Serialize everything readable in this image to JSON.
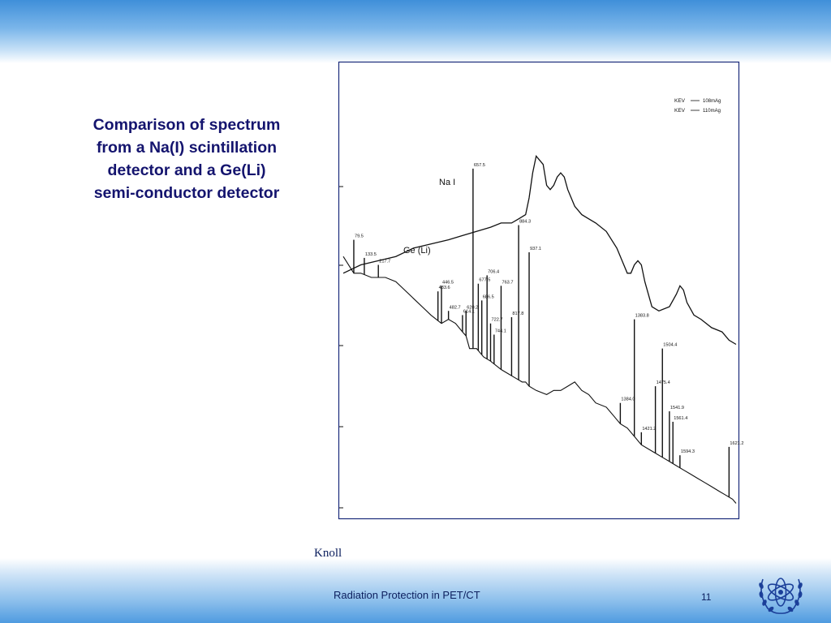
{
  "slide": {
    "title_lines": [
      "Comparison of spectrum",
      "from a Na(I) scintillation",
      "detector and a Ge(Li)",
      "semi-conductor detector"
    ],
    "credit": "Knoll",
    "footer": "Radiation Protection in PET/CT",
    "page_number": "11",
    "colors": {
      "title": "#14146e",
      "band_top": "#3f8fd9",
      "band_bottom": "#4f9be0",
      "frame": "#1a2a7a"
    },
    "logo_icon": "iaea-atom-laurel-icon"
  },
  "chart_data": {
    "type": "line",
    "x_label": "",
    "y_label": "",
    "legend_lines": [
      {
        "label": "KEV",
        "target": "108mAg"
      },
      {
        "label": "KEV",
        "target": "110mAg"
      }
    ],
    "series": [
      {
        "name": "Na I",
        "points": [
          [
            0,
            58
          ],
          [
            5,
            60
          ],
          [
            10,
            61
          ],
          [
            15,
            62
          ],
          [
            20,
            64
          ],
          [
            25,
            65
          ],
          [
            30,
            66
          ],
          [
            34,
            67
          ],
          [
            38,
            68
          ],
          [
            42,
            69
          ],
          [
            45,
            70
          ],
          [
            48,
            70
          ],
          [
            50,
            71
          ],
          [
            52,
            72
          ],
          [
            53,
            76
          ],
          [
            54,
            82
          ],
          [
            55,
            86
          ],
          [
            56,
            85
          ],
          [
            57,
            84
          ],
          [
            58,
            79
          ],
          [
            59,
            78
          ],
          [
            60,
            79
          ],
          [
            61,
            81
          ],
          [
            62,
            82
          ],
          [
            63,
            81
          ],
          [
            64,
            78
          ],
          [
            66,
            74
          ],
          [
            68,
            72
          ],
          [
            70,
            71
          ],
          [
            72,
            70
          ],
          [
            75,
            68
          ],
          [
            78,
            64
          ],
          [
            80,
            60
          ],
          [
            81,
            58
          ],
          [
            82,
            58
          ],
          [
            83,
            60
          ],
          [
            84,
            61
          ],
          [
            85,
            60
          ],
          [
            86,
            56
          ],
          [
            88,
            50
          ],
          [
            90,
            49
          ],
          [
            93,
            50
          ],
          [
            95,
            53
          ],
          [
            96,
            55
          ],
          [
            97,
            54
          ],
          [
            98,
            51
          ],
          [
            100,
            48
          ],
          [
            102,
            47
          ],
          [
            105,
            45
          ],
          [
            108,
            44
          ],
          [
            110,
            42
          ],
          [
            112,
            41
          ]
        ]
      },
      {
        "name": "Ge (Li)",
        "points": [
          [
            0,
            62
          ],
          [
            3,
            58
          ],
          [
            5,
            58
          ],
          [
            8,
            57
          ],
          [
            12,
            57
          ],
          [
            15,
            56
          ],
          [
            20,
            52
          ],
          [
            25,
            48
          ],
          [
            28,
            46
          ],
          [
            30,
            47
          ],
          [
            32,
            46
          ],
          [
            34,
            44
          ],
          [
            35,
            43
          ],
          [
            36,
            40
          ],
          [
            38,
            40
          ],
          [
            40,
            38
          ],
          [
            42,
            37
          ],
          [
            45,
            35
          ],
          [
            47,
            34
          ],
          [
            49,
            33
          ],
          [
            51,
            32
          ],
          [
            52,
            32
          ],
          [
            53,
            31
          ],
          [
            55,
            30
          ],
          [
            58,
            29
          ],
          [
            60,
            30
          ],
          [
            62,
            30
          ],
          [
            64,
            31
          ],
          [
            66,
            32
          ],
          [
            68,
            30
          ],
          [
            70,
            29
          ],
          [
            72,
            27
          ],
          [
            75,
            26
          ],
          [
            77,
            24
          ],
          [
            79,
            22
          ],
          [
            81,
            21
          ],
          [
            83,
            19
          ],
          [
            85,
            17
          ],
          [
            87,
            16
          ],
          [
            89,
            15
          ],
          [
            91,
            14
          ],
          [
            93,
            13
          ],
          [
            95,
            12
          ],
          [
            97,
            11
          ],
          [
            99,
            10
          ],
          [
            101,
            9
          ],
          [
            103,
            8
          ],
          [
            105,
            7
          ],
          [
            107,
            6
          ],
          [
            109,
            5
          ],
          [
            111,
            4
          ],
          [
            112,
            3
          ]
        ]
      }
    ],
    "ge_peaks": [
      {
        "label": "79.5",
        "x": 3,
        "h": 8
      },
      {
        "label": "133.5",
        "x": 6,
        "h": 4
      },
      {
        "label": "217.7",
        "x": 10,
        "h": 3
      },
      {
        "label": "433.6",
        "x": 27,
        "h": 7
      },
      {
        "label": "446.5",
        "x": 28,
        "h": 9
      },
      {
        "label": "482.7",
        "x": 30,
        "h": 2
      },
      {
        "label": "614.1",
        "x": 34,
        "h": 4
      },
      {
        "label": "620.2",
        "x": 35,
        "h": 6
      },
      {
        "label": "657.5",
        "x": 37,
        "h": 43
      },
      {
        "label": "677.5",
        "x": 38.5,
        "h": 16
      },
      {
        "label": "686.5",
        "x": 39.5,
        "h": 13
      },
      {
        "label": "706.4",
        "x": 41,
        "h": 20
      },
      {
        "label": "722.7",
        "x": 42,
        "h": 9
      },
      {
        "label": "744.1",
        "x": 43,
        "h": 7
      },
      {
        "label": "763.7",
        "x": 45,
        "h": 20
      },
      {
        "label": "817.8",
        "x": 48,
        "h": 14
      },
      {
        "label": "884.3",
        "x": 50,
        "h": 37
      },
      {
        "label": "937.1",
        "x": 53,
        "h": 32
      },
      {
        "label": "1384.0",
        "x": 79,
        "h": 5
      },
      {
        "label": "1383.8",
        "x": 83,
        "h": 28
      },
      {
        "label": "1421.2",
        "x": 85,
        "h": 3
      },
      {
        "label": "1475.4",
        "x": 89,
        "h": 16
      },
      {
        "label": "1504.4",
        "x": 91,
        "h": 26
      },
      {
        "label": "1541.9",
        "x": 93,
        "h": 12
      },
      {
        "label": "1561.4",
        "x": 94,
        "h": 10
      },
      {
        "label": "1594.3",
        "x": 96,
        "h": 3
      },
      {
        "label": "1621.2",
        "x": 110,
        "h": 12
      }
    ],
    "x_range": [
      0,
      112
    ],
    "y_range": [
      0,
      95
    ],
    "grid": false
  }
}
